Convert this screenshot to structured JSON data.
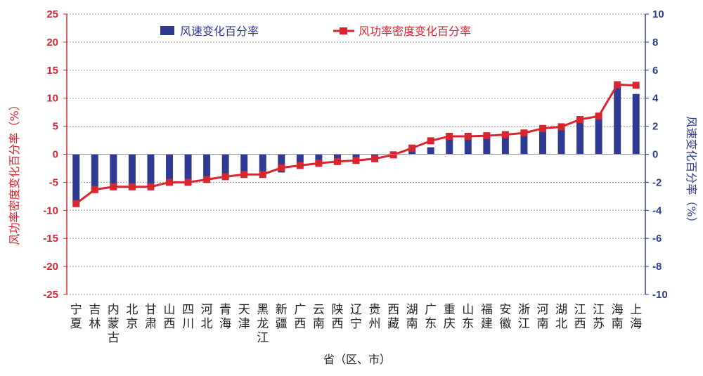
{
  "chart_data": {
    "type": "bar",
    "categories": [
      "宁夏",
      "吉林",
      "内蒙古",
      "北京",
      "甘肃",
      "山西",
      "四川",
      "河北",
      "青海",
      "天津",
      "黑龙江",
      "新疆",
      "广西",
      "云南",
      "陕西",
      "辽宁",
      "贵州",
      "西藏",
      "湖南",
      "广东",
      "重庆",
      "山东",
      "福建",
      "安徽",
      "浙江",
      "河南",
      "湖北",
      "江西",
      "江苏",
      "海南",
      "上海"
    ],
    "series": [
      {
        "name": "风速变化百分率",
        "type": "bar",
        "axis": "right",
        "color": "#2f3a93",
        "values": [
          -3.3,
          -2.3,
          -2.3,
          -2.3,
          -2.3,
          -1.8,
          -1.8,
          -1.7,
          -1.5,
          -1.4,
          -1.4,
          -1.3,
          -0.6,
          -0.6,
          -0.4,
          -0.3,
          -0.2,
          -0.1,
          0.3,
          0.5,
          1.3,
          1.3,
          1.3,
          1.4,
          1.6,
          1.8,
          1.9,
          2.4,
          2.6,
          4.9,
          4.3
        ]
      },
      {
        "name": "风功率密度变化百分率",
        "type": "line",
        "axis": "left",
        "color": "#d9262e",
        "values": [
          -8.8,
          -6.3,
          -5.8,
          -5.8,
          -5.8,
          -5.0,
          -5.0,
          -4.5,
          -4.0,
          -3.6,
          -3.6,
          -2.4,
          -2.0,
          -1.6,
          -1.3,
          -1.1,
          -0.8,
          -0.1,
          1.1,
          2.4,
          3.2,
          3.2,
          3.3,
          3.5,
          3.8,
          4.6,
          4.9,
          6.2,
          6.8,
          12.4,
          12.3
        ]
      }
    ],
    "left_axis": {
      "label": "风功率密度变化百分率（%）",
      "ylim": [
        -25,
        25
      ],
      "ticks": [
        "25",
        "20",
        "15",
        "10",
        "5",
        "0",
        "-5",
        "-10",
        "-15",
        "-20",
        "-25"
      ]
    },
    "right_axis": {
      "label": "风速变化百分率（%）",
      "ylim": [
        -10,
        10
      ],
      "ticks": [
        "10",
        "8",
        "6",
        "4",
        "2",
        "0",
        "-2",
        "-4",
        "-6",
        "-8",
        "-10"
      ]
    },
    "xlabel": "省（区、市）",
    "legend_position": "top",
    "grid": true
  }
}
